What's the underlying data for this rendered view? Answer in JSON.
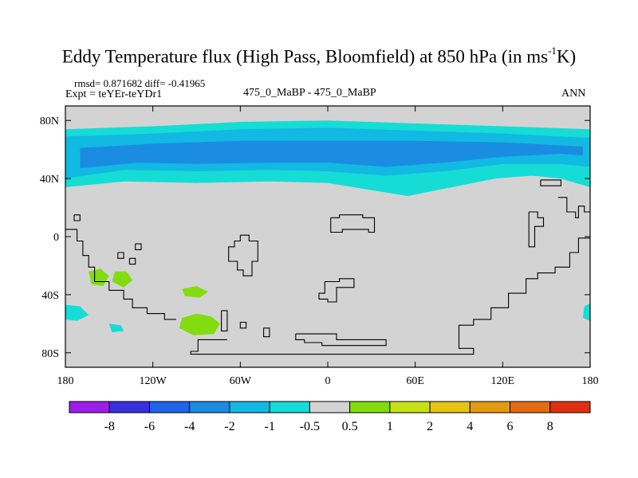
{
  "chart_data": {
    "type": "heatmap",
    "title_main": "Eddy Temperature flux (High Pass, Bloomfield) at 850 hPa (in ms",
    "title_sup": "-1",
    "title_end": "K)",
    "stats": "rmsd= 0.871682 diff= -0.41965",
    "expt": "Expt = teYEr-teYDr1",
    "center_label": "475_0_MaBP - 475_0_MaBP",
    "season": "ANN",
    "x_ticks": [
      "180",
      "120W",
      "60W",
      "0",
      "60E",
      "120E",
      "180"
    ],
    "y_ticks": [
      "80N",
      "40N",
      "0",
      "40S",
      "80S"
    ],
    "xlim": [
      -180,
      180
    ],
    "ylim": [
      -90,
      90
    ],
    "colorbar": {
      "labels": [
        "-8",
        "-6",
        "-4",
        "-2",
        "-1",
        "-0.5",
        "0.5",
        "1",
        "2",
        "4",
        "6",
        "8"
      ],
      "colors": [
        "#9b1fe8",
        "#3a2fe0",
        "#1e64e8",
        "#1a8de2",
        "#12b9e2",
        "#16dcd6",
        "#d3d3d3",
        "#82dc10",
        "#c6e216",
        "#e6c412",
        "#e49a10",
        "#e46c10",
        "#e03010"
      ]
    },
    "background_color": "#d3d3d3",
    "regions": [
      {
        "level": "-0.5",
        "color": "#16dcd6",
        "points": [
          [
            -180,
            34
          ],
          [
            -140,
            38
          ],
          [
            -90,
            37
          ],
          [
            -40,
            38
          ],
          [
            0,
            37
          ],
          [
            30,
            32
          ],
          [
            55,
            28
          ],
          [
            80,
            33
          ],
          [
            115,
            40
          ],
          [
            140,
            42
          ],
          [
            160,
            40
          ],
          [
            180,
            34
          ],
          [
            180,
            74
          ],
          [
            120,
            76
          ],
          [
            60,
            78
          ],
          [
            0,
            80
          ],
          [
            -60,
            79
          ],
          [
            -120,
            76
          ],
          [
            -180,
            74
          ]
        ]
      },
      {
        "level": "-1",
        "color": "#12b9e2",
        "points": [
          [
            -180,
            40
          ],
          [
            -140,
            46
          ],
          [
            -90,
            45
          ],
          [
            -40,
            46
          ],
          [
            0,
            45
          ],
          [
            40,
            42
          ],
          [
            80,
            45
          ],
          [
            120,
            50
          ],
          [
            160,
            50
          ],
          [
            180,
            48
          ],
          [
            180,
            68
          ],
          [
            120,
            71
          ],
          [
            60,
            73
          ],
          [
            0,
            75
          ],
          [
            -60,
            74
          ],
          [
            -120,
            71
          ],
          [
            -180,
            69
          ]
        ]
      },
      {
        "level": "-2",
        "color": "#1a8de2",
        "points": [
          [
            -170,
            47
          ],
          [
            -130,
            51
          ],
          [
            -90,
            50
          ],
          [
            -40,
            51
          ],
          [
            0,
            51
          ],
          [
            40,
            48
          ],
          [
            80,
            51
          ],
          [
            120,
            55
          ],
          [
            160,
            57
          ],
          [
            175,
            56
          ],
          [
            175,
            62
          ],
          [
            120,
            65
          ],
          [
            60,
            66
          ],
          [
            0,
            66
          ],
          [
            -60,
            66
          ],
          [
            -120,
            64
          ],
          [
            -170,
            61
          ]
        ]
      },
      {
        "level": "1",
        "color": "#82dc10",
        "points": [
          [
            -164,
            -24
          ],
          [
            -156,
            -22
          ],
          [
            -150,
            -27
          ],
          [
            -154,
            -34
          ],
          [
            -162,
            -33
          ]
        ]
      },
      {
        "level": "1",
        "color": "#82dc10",
        "points": [
          [
            -146,
            -24
          ],
          [
            -138,
            -24
          ],
          [
            -134,
            -30
          ],
          [
            -140,
            -35
          ],
          [
            -148,
            -31
          ]
        ]
      },
      {
        "level": "1",
        "color": "#82dc10",
        "points": [
          [
            -100,
            -56
          ],
          [
            -90,
            -53
          ],
          [
            -80,
            -55
          ],
          [
            -74,
            -60
          ],
          [
            -78,
            -67
          ],
          [
            -92,
            -68
          ],
          [
            -102,
            -63
          ]
        ]
      },
      {
        "level": "1",
        "color": "#82dc10",
        "points": [
          [
            -100,
            -36
          ],
          [
            -90,
            -34
          ],
          [
            -82,
            -38
          ],
          [
            -88,
            -42
          ],
          [
            -98,
            -41
          ]
        ]
      },
      {
        "level": "-0.5",
        "color": "#16dcd6",
        "points": [
          [
            -180,
            -47
          ],
          [
            -170,
            -48
          ],
          [
            -164,
            -54
          ],
          [
            -172,
            -58
          ],
          [
            -180,
            -57
          ]
        ]
      },
      {
        "level": "-0.5",
        "color": "#16dcd6",
        "points": [
          [
            -150,
            -60
          ],
          [
            -142,
            -61
          ],
          [
            -140,
            -65
          ],
          [
            -148,
            -66
          ]
        ]
      },
      {
        "level": "-0.5",
        "color": "#16dcd6",
        "points": [
          [
            176,
            -48
          ],
          [
            180,
            -46
          ],
          [
            180,
            -58
          ],
          [
            175,
            -56
          ]
        ]
      }
    ],
    "coastlines": [
      [
        [
          -180,
          5
        ],
        [
          -172,
          5
        ],
        [
          -172,
          -3
        ],
        [
          -168,
          -3
        ],
        [
          -168,
          -13
        ],
        [
          -164,
          -13
        ],
        [
          -164,
          -21
        ],
        [
          -160,
          -21
        ],
        [
          -160,
          -31
        ],
        [
          -150,
          -31
        ],
        [
          -150,
          -37
        ],
        [
          -140,
          -37
        ],
        [
          -140,
          -43
        ],
        [
          -134,
          -43
        ],
        [
          -134,
          -49
        ],
        [
          -124,
          -49
        ],
        [
          -124,
          -53
        ],
        [
          -112,
          -53
        ],
        [
          -112,
          -57
        ],
        [
          -104,
          -57
        ]
      ],
      [
        [
          -132,
          -5
        ],
        [
          -128,
          -5
        ],
        [
          -128,
          -9
        ],
        [
          -132,
          -9
        ],
        [
          -132,
          -5
        ]
      ],
      [
        [
          -144,
          -11
        ],
        [
          -140,
          -11
        ],
        [
          -140,
          -15
        ],
        [
          -144,
          -15
        ],
        [
          -144,
          -11
        ]
      ],
      [
        [
          -136,
          -15
        ],
        [
          -132,
          -15
        ],
        [
          -132,
          -19
        ],
        [
          -136,
          -19
        ],
        [
          -136,
          -15
        ]
      ],
      [
        [
          -174,
          15
        ],
        [
          -170,
          15
        ],
        [
          -170,
          11
        ],
        [
          -174,
          11
        ],
        [
          -174,
          15
        ]
      ],
      [
        [
          -73,
          -51
        ],
        [
          -69,
          -51
        ],
        [
          -69,
          -65
        ],
        [
          -73,
          -65
        ],
        [
          -73,
          -51
        ]
      ],
      [
        [
          -69,
          -71
        ],
        [
          -89,
          -71
        ],
        [
          -89,
          -79
        ],
        [
          -94,
          -79
        ],
        [
          -94,
          -81
        ],
        [
          100,
          -81
        ],
        [
          100,
          -77
        ],
        [
          90,
          -77
        ],
        [
          90,
          -61
        ],
        [
          100,
          -61
        ],
        [
          100,
          -57
        ],
        [
          112,
          -57
        ],
        [
          112,
          -49
        ],
        [
          124,
          -49
        ],
        [
          124,
          -39
        ],
        [
          136,
          -39
        ],
        [
          136,
          -29
        ],
        [
          144,
          -29
        ],
        [
          144,
          -25
        ],
        [
          156,
          -25
        ],
        [
          156,
          -21
        ],
        [
          166,
          -21
        ],
        [
          166,
          -11
        ],
        [
          172,
          -11
        ],
        [
          172,
          -1
        ],
        [
          180,
          -1
        ]
      ],
      [
        [
          -60,
          -59
        ],
        [
          -56,
          -59
        ],
        [
          -56,
          -63
        ],
        [
          -60,
          -63
        ],
        [
          -60,
          -59
        ]
      ],
      [
        [
          -44,
          -63
        ],
        [
          -40,
          -63
        ],
        [
          -40,
          -69
        ],
        [
          -44,
          -69
        ],
        [
          -44,
          -63
        ]
      ],
      [
        [
          -22,
          -67
        ],
        [
          6,
          -67
        ],
        [
          6,
          -71
        ],
        [
          40,
          -71
        ],
        [
          40,
          -75
        ],
        [
          -4,
          -75
        ],
        [
          -4,
          -73
        ],
        [
          -16,
          -73
        ],
        [
          -16,
          -71
        ],
        [
          -22,
          -71
        ],
        [
          -22,
          -67
        ]
      ],
      [
        [
          -60,
          1
        ],
        [
          -54,
          1
        ],
        [
          -54,
          -3
        ],
        [
          -48,
          -3
        ],
        [
          -48,
          -17
        ],
        [
          -52,
          -17
        ],
        [
          -52,
          -27
        ],
        [
          -58,
          -27
        ],
        [
          -58,
          -23
        ],
        [
          -62,
          -23
        ],
        [
          -62,
          -17
        ],
        [
          -68,
          -17
        ],
        [
          -68,
          -7
        ],
        [
          -64,
          -7
        ],
        [
          -64,
          -3
        ],
        [
          -60,
          -3
        ],
        [
          -60,
          1
        ]
      ],
      [
        [
          -2,
          -31
        ],
        [
          8,
          -31
        ],
        [
          8,
          -29
        ],
        [
          18,
          -29
        ],
        [
          18,
          -35
        ],
        [
          6,
          -35
        ],
        [
          6,
          -45
        ],
        [
          0,
          -45
        ],
        [
          0,
          -43
        ],
        [
          -6,
          -43
        ],
        [
          -6,
          -39
        ],
        [
          -2,
          -39
        ],
        [
          -2,
          -31
        ]
      ],
      [
        [
          2,
          13
        ],
        [
          8,
          13
        ],
        [
          8,
          15
        ],
        [
          24,
          15
        ],
        [
          24,
          13
        ],
        [
          32,
          13
        ],
        [
          32,
          3
        ],
        [
          28,
          3
        ],
        [
          28,
          5
        ],
        [
          10,
          5
        ],
        [
          10,
          3
        ],
        [
          2,
          3
        ],
        [
          2,
          13
        ]
      ],
      [
        [
          138,
          17
        ],
        [
          144,
          17
        ],
        [
          144,
          13
        ],
        [
          148,
          13
        ],
        [
          148,
          7
        ],
        [
          142,
          7
        ],
        [
          142,
          -7
        ],
        [
          138,
          -7
        ],
        [
          138,
          17
        ]
      ],
      [
        [
          158,
          27
        ],
        [
          164,
          27
        ],
        [
          164,
          17
        ],
        [
          170,
          17
        ],
        [
          170,
          13
        ],
        [
          172,
          13
        ],
        [
          172,
          21
        ],
        [
          176,
          21
        ],
        [
          176,
          17
        ],
        [
          180,
          17
        ]
      ],
      [
        [
          146,
          39
        ],
        [
          160,
          39
        ],
        [
          160,
          35
        ],
        [
          146,
          35
        ],
        [
          146,
          39
        ]
      ]
    ]
  }
}
